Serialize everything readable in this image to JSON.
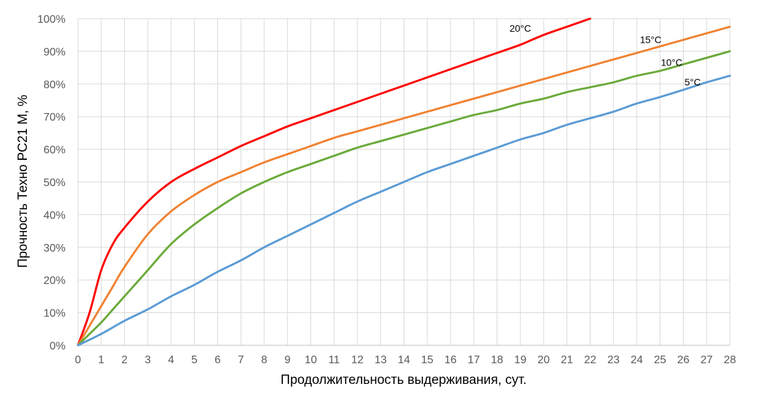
{
  "chart_data": {
    "type": "line",
    "xlabel": "Продолжительность выдерживания, сут.",
    "ylabel": "Прочность Техно РС21 М, %",
    "xlim": [
      0,
      28
    ],
    "ylim": [
      0,
      100
    ],
    "x_ticks": [
      "0",
      "1",
      "2",
      "3",
      "4",
      "5",
      "6",
      "7",
      "8",
      "9",
      "10",
      "11",
      "12",
      "13",
      "14",
      "15",
      "16",
      "17",
      "18",
      "19",
      "20",
      "21",
      "22",
      "23",
      "24",
      "25",
      "26",
      "27",
      "28"
    ],
    "y_ticks": [
      "0%",
      "10%",
      "20%",
      "30%",
      "40%",
      "50%",
      "60%",
      "70%",
      "80%",
      "90%",
      "100%"
    ],
    "grid": true,
    "legend": "inline labels at line ends",
    "series": [
      {
        "name": "20°C",
        "color": "#ff0000",
        "x": [
          0,
          0.5,
          1,
          1.5,
          2,
          3,
          4,
          5,
          6,
          7,
          8,
          9,
          10,
          11,
          12,
          13,
          14,
          15,
          16,
          17,
          18,
          19,
          20,
          21,
          22
        ],
        "y": [
          0,
          10,
          23,
          31,
          36,
          44,
          50,
          54,
          57.5,
          61,
          64,
          67,
          69.5,
          72,
          74.5,
          77,
          79.5,
          82,
          84.5,
          87,
          89.5,
          92,
          95,
          97.5,
          100
        ]
      },
      {
        "name": "15°C",
        "color": "#f08232",
        "x": [
          0,
          0.5,
          1,
          1.5,
          2,
          3,
          4,
          5,
          6,
          7,
          8,
          9,
          10,
          11,
          12,
          13,
          14,
          15,
          16,
          17,
          18,
          19,
          20,
          21,
          22,
          23,
          24,
          25,
          26,
          27,
          28
        ],
        "y": [
          0,
          6,
          12,
          18,
          24,
          34,
          41,
          46,
          50,
          53,
          56,
          58.5,
          61,
          63.5,
          65.5,
          67.5,
          69.5,
          71.5,
          73.5,
          75.5,
          77.5,
          79.5,
          81.5,
          83.5,
          85.5,
          87.5,
          89.5,
          91.5,
          93.5,
          95.5,
          97.5
        ]
      },
      {
        "name": "10°C",
        "color": "#6aaa3a",
        "x": [
          0,
          0.5,
          1,
          1.5,
          2,
          3,
          4,
          5,
          6,
          7,
          8,
          9,
          10,
          11,
          12,
          13,
          14,
          15,
          16,
          17,
          18,
          19,
          20,
          21,
          22,
          23,
          24,
          25,
          26,
          27,
          28
        ],
        "y": [
          0,
          3.5,
          7,
          11,
          15,
          23,
          31,
          37,
          42,
          46.5,
          50,
          53,
          55.5,
          58,
          60.5,
          62.5,
          64.5,
          66.5,
          68.5,
          70.5,
          72,
          74,
          75.5,
          77.5,
          79,
          80.5,
          82.5,
          84,
          86,
          88,
          90
        ]
      },
      {
        "name": "5°C",
        "color": "#5b9bd5",
        "x": [
          0,
          1,
          2,
          3,
          4,
          5,
          6,
          7,
          8,
          9,
          10,
          11,
          12,
          13,
          14,
          15,
          16,
          17,
          18,
          19,
          20,
          21,
          22,
          23,
          24,
          25,
          26,
          27,
          28
        ],
        "y": [
          0,
          3.5,
          7.5,
          11,
          15,
          18.5,
          22.5,
          26,
          30,
          33.5,
          37,
          40.5,
          44,
          47,
          50,
          53,
          55.5,
          58,
          60.5,
          63,
          65,
          67.5,
          69.5,
          71.5,
          74,
          76,
          78.2,
          80.5,
          82.5
        ]
      }
    ],
    "series_labels": [
      {
        "name": "20°C",
        "at_x": 19,
        "at_y": 96
      },
      {
        "name": "15°C",
        "at_x": 24.6,
        "at_y": 92.5
      },
      {
        "name": "10°C",
        "at_x": 25.5,
        "at_y": 85.5
      },
      {
        "name": "5°C",
        "at_x": 26.4,
        "at_y": 79.5
      }
    ]
  }
}
